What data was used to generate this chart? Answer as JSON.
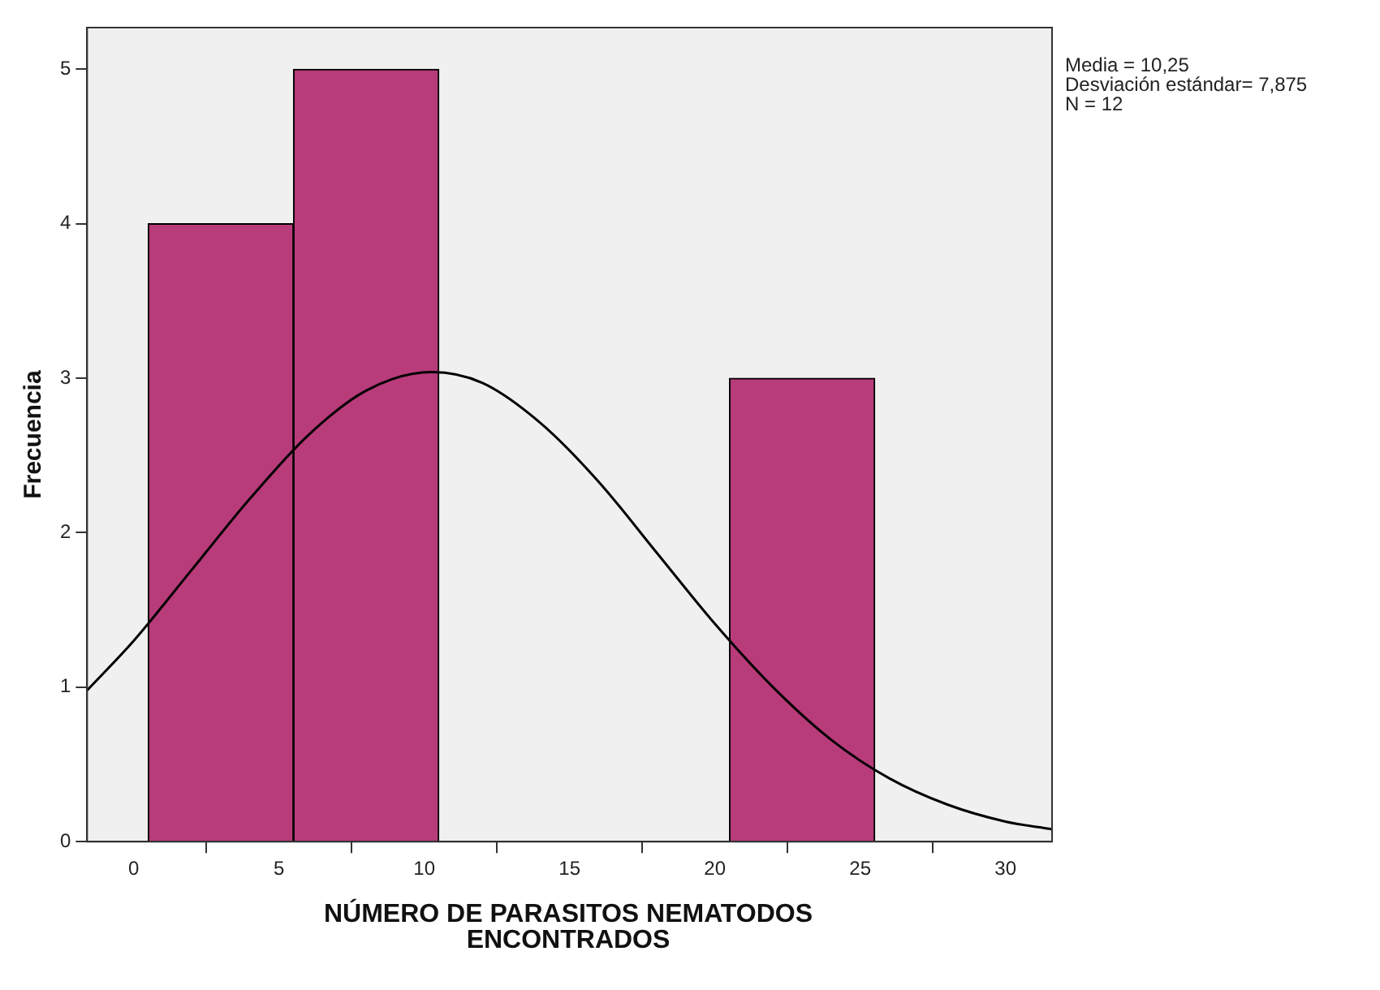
{
  "chart_data": {
    "type": "histogram",
    "xlabel": "NÚMERO DE PARASITOS NEMATODOS ENCONTRADOS",
    "ylabel": "Frecuencia",
    "bins": [
      0.5,
      5.5,
      10.5,
      15.5,
      20.5,
      25.5
    ],
    "values": [
      4,
      5,
      0,
      0,
      3
    ],
    "color": "#b83b7a",
    "series": [
      {
        "type": "line",
        "color": "#000000",
        "x": [
          -1.6,
          0,
          2,
          4,
          6,
          8,
          10.25,
          12,
          14,
          16,
          18,
          20,
          22,
          24,
          26,
          28,
          30,
          31.6
        ],
        "values": [
          0.98,
          1.3,
          1.76,
          2.22,
          2.63,
          2.92,
          3.04,
          2.97,
          2.71,
          2.33,
          1.87,
          1.41,
          1.0,
          0.66,
          0.41,
          0.24,
          0.13,
          0.08
        ]
      }
    ],
    "xlim": [
      -1.6,
      31.6
    ],
    "xticks": [
      0,
      5,
      10,
      15,
      20,
      25,
      30
    ],
    "ylim": [
      0,
      5.27
    ],
    "yticks": [
      0,
      1,
      2,
      3,
      4,
      5
    ],
    "annotations": [
      "Media = 10,25",
      "Desviación estándar= 7,875",
      "N = 12"
    ],
    "grid": false,
    "legend": false,
    "marker": "none"
  }
}
